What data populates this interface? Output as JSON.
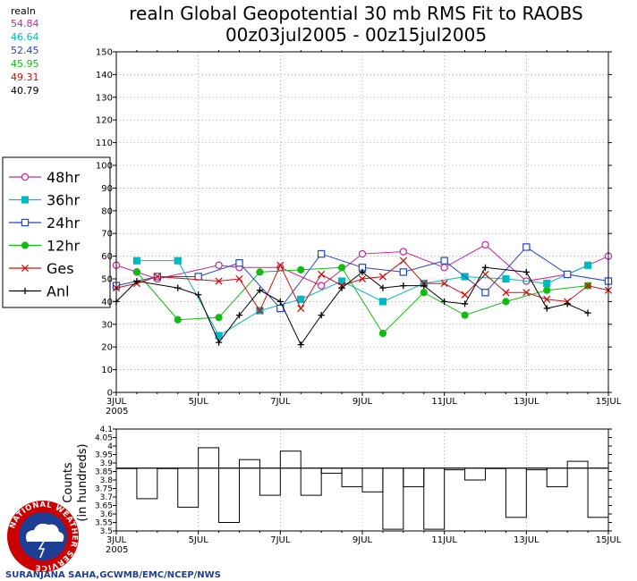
{
  "title_line1": "realn Global Geopotential 30 mb RMS Fit to RAOBS",
  "title_line2": "00z03jul2005 - 00z15jul2005",
  "credit": "SURANJANA SAHA,GCWMB/EMC/NCEP/NWS",
  "logo": {
    "icon": "nws-logo",
    "text": "NATIONAL WEATHER SERVICE",
    "colors": {
      "ring": "#cc0000",
      "disc": "#1c3f94",
      "cloud": "#ffffff"
    }
  },
  "colors": {
    "background": "#ffffff",
    "frame": "#000000",
    "grid": "#888888"
  },
  "means": {
    "header": "realn",
    "items": [
      {
        "value": "54.84",
        "color": "#cc2299"
      },
      {
        "value": "46.64",
        "color": "#00b8c0"
      },
      {
        "value": "52.45",
        "color": "#2244cc"
      },
      {
        "value": "45.95",
        "color": "#11bb11"
      },
      {
        "value": "49.31",
        "color": "#cc1111"
      },
      {
        "value": "40.79",
        "color": "#000000"
      }
    ]
  },
  "chart_data": [
    {
      "type": "line",
      "ylim": [
        0,
        150
      ],
      "yticks": [
        0,
        10,
        20,
        30,
        40,
        50,
        60,
        70,
        80,
        90,
        100,
        110,
        120,
        130,
        140,
        150
      ],
      "xlim": [
        0,
        24
      ],
      "xtick_labels": [
        "3JUL",
        "5JUL",
        "7JUL",
        "9JUL",
        "11JUL",
        "13JUL",
        "15JUL"
      ],
      "xtick_year": "2005",
      "grid": true,
      "legend_position": "left",
      "series": [
        {
          "name": "48hr",
          "color": "#cc2299",
          "marker": "open-circle",
          "x": [
            0,
            1,
            2,
            3,
            4,
            5,
            6,
            7,
            8,
            9,
            10,
            11,
            12,
            13,
            14,
            15,
            16,
            17,
            18,
            19,
            20,
            21,
            22,
            23,
            24
          ],
          "y": [
            56,
            53,
            50,
            null,
            null,
            56,
            55,
            null,
            55,
            null,
            47,
            null,
            61,
            null,
            62,
            null,
            55,
            null,
            65,
            null,
            49,
            null,
            52,
            null,
            60
          ]
        },
        {
          "name": "36hr",
          "color": "#00b8c0",
          "marker": "filled-square",
          "x": [
            0,
            1,
            2,
            3,
            4,
            5,
            6,
            7,
            8,
            9,
            10,
            11,
            12,
            13,
            14,
            15,
            16,
            17,
            18,
            19,
            20,
            21,
            22,
            23,
            24
          ],
          "y": [
            null,
            58,
            null,
            58,
            null,
            25,
            null,
            36,
            null,
            41,
            null,
            49,
            null,
            40,
            null,
            48,
            null,
            51,
            null,
            50,
            null,
            48,
            null,
            56,
            null
          ]
        },
        {
          "name": "24hr",
          "color": "#2244cc",
          "marker": "open-square",
          "x": [
            0,
            1,
            2,
            3,
            4,
            5,
            6,
            7,
            8,
            9,
            10,
            11,
            12,
            13,
            14,
            15,
            16,
            17,
            18,
            19,
            20,
            21,
            22,
            23,
            24
          ],
          "y": [
            47,
            null,
            51,
            null,
            51,
            null,
            57,
            null,
            37,
            null,
            61,
            null,
            55,
            null,
            53,
            null,
            58,
            null,
            44,
            null,
            64,
            null,
            52,
            null,
            49
          ]
        },
        {
          "name": "12hr",
          "color": "#11bb11",
          "marker": "filled-circle",
          "x": [
            0,
            1,
            2,
            3,
            4,
            5,
            6,
            7,
            8,
            9,
            10,
            11,
            12,
            13,
            14,
            15,
            16,
            17,
            18,
            19,
            20,
            21,
            22,
            23,
            24
          ],
          "y": [
            null,
            53,
            null,
            32,
            null,
            33,
            null,
            53,
            null,
            54,
            null,
            55,
            null,
            26,
            null,
            44,
            null,
            34,
            null,
            40,
            null,
            45,
            null,
            47,
            null
          ]
        },
        {
          "name": "Ges",
          "color": "#cc1111",
          "marker": "x",
          "x": [
            0,
            1,
            2,
            3,
            4,
            5,
            6,
            7,
            8,
            9,
            10,
            11,
            12,
            13,
            14,
            15,
            16,
            17,
            18,
            19,
            20,
            21,
            22,
            23,
            24
          ],
          "y": [
            46,
            48,
            51,
            null,
            null,
            49,
            50,
            36,
            56,
            37,
            52,
            47,
            50,
            51,
            58,
            48,
            48,
            43,
            52,
            44,
            44,
            41,
            40,
            47,
            45
          ]
        },
        {
          "name": "Anl",
          "color": "#000000",
          "marker": "plus",
          "x": [
            0,
            1,
            2,
            3,
            4,
            5,
            6,
            7,
            8,
            9,
            10,
            11,
            12,
            13,
            14,
            15,
            16,
            17,
            18,
            19,
            20,
            21,
            22,
            23,
            24
          ],
          "y": [
            40,
            49,
            null,
            46,
            43,
            22,
            34,
            45,
            40,
            21,
            34,
            46,
            53,
            46,
            47,
            47,
            40,
            39,
            55,
            null,
            53,
            37,
            39,
            35,
            null
          ]
        }
      ]
    },
    {
      "type": "bar",
      "ylabel_line1": "Counts",
      "ylabel_line2": "(in hundreds)",
      "ylim": [
        3.5,
        4.1
      ],
      "yticks": [
        3.5,
        3.55,
        3.6,
        3.65,
        3.7,
        3.75,
        3.8,
        3.85,
        3.9,
        3.95,
        4,
        4.05,
        4.1
      ],
      "ytick_labels": [
        "3.5",
        "3.55",
        "3.6",
        "3.65",
        "3.7",
        "3.75",
        "3.8",
        "3.85",
        "3.9",
        "3.95",
        "4",
        "4.05",
        "4.1"
      ],
      "reference_line": 3.87,
      "xlim": [
        0,
        24
      ],
      "xtick_labels": [
        "3JUL",
        "5JUL",
        "7JUL",
        "9JUL",
        "11JUL",
        "13JUL",
        "15JUL"
      ],
      "xtick_year": "2005",
      "bars": [
        {
          "x0": 0,
          "x1": 1,
          "value": 3.87
        },
        {
          "x0": 1,
          "x1": 2,
          "value": 3.69
        },
        {
          "x0": 2,
          "x1": 3,
          "value": 3.87
        },
        {
          "x0": 3,
          "x1": 4,
          "value": 3.64
        },
        {
          "x0": 4,
          "x1": 5,
          "value": 3.99
        },
        {
          "x0": 5,
          "x1": 6,
          "value": 3.55
        },
        {
          "x0": 6,
          "x1": 7,
          "value": 3.92
        },
        {
          "x0": 7,
          "x1": 8,
          "value": 3.71
        },
        {
          "x0": 8,
          "x1": 9,
          "value": 3.97
        },
        {
          "x0": 9,
          "x1": 10,
          "value": 3.71
        },
        {
          "x0": 10,
          "x1": 11,
          "value": 3.84
        },
        {
          "x0": 11,
          "x1": 12,
          "value": 3.76
        },
        {
          "x0": 12,
          "x1": 13,
          "value": 3.73
        },
        {
          "x0": 13,
          "x1": 14,
          "value": 3.51
        },
        {
          "x0": 14,
          "x1": 15,
          "value": 3.76
        },
        {
          "x0": 15,
          "x1": 16,
          "value": 3.51
        },
        {
          "x0": 16,
          "x1": 17,
          "value": 3.86
        },
        {
          "x0": 17,
          "x1": 18,
          "value": 3.8
        },
        {
          "x0": 18,
          "x1": 19,
          "value": 3.87
        },
        {
          "x0": 19,
          "x1": 20,
          "value": 3.58
        },
        {
          "x0": 20,
          "x1": 21,
          "value": 3.86
        },
        {
          "x0": 21,
          "x1": 22,
          "value": 3.76
        },
        {
          "x0": 22,
          "x1": 23,
          "value": 3.91
        },
        {
          "x0": 23,
          "x1": 24,
          "value": 3.58
        },
        {
          "x0": 24,
          "x1": 24.2,
          "value": 3.91
        }
      ]
    }
  ]
}
